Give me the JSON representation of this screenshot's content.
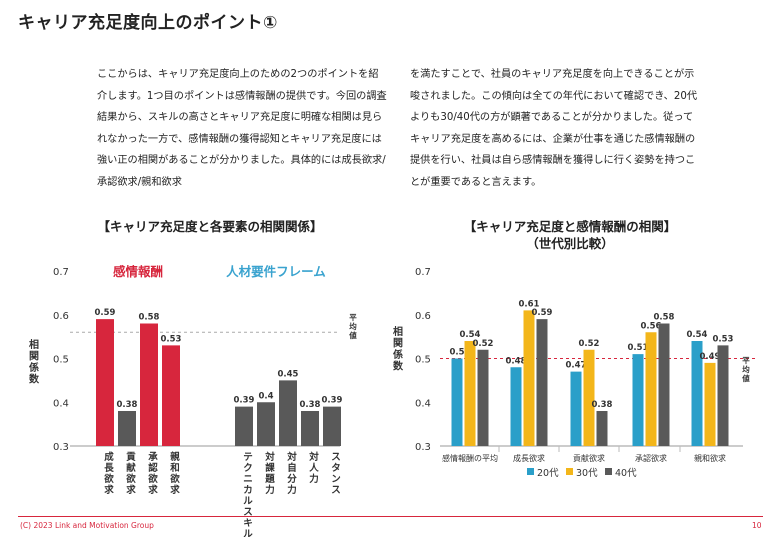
{
  "page": {
    "title": "キャリア充足度向上のポイント①",
    "para_left": "ここからは、キャリア充足度向上のための2つのポイントを紹介します。1つ目のポイントは感情報酬の提供です。今回の調査結果から、スキルの高さとキャリア充足度に明確な相関は見られなかった一方で、感情報酬の獲得認知とキャリア充足度には強い正の相関があることが分かりました。具体的には成長欲求/承認欲求/親和欲求",
    "para_right": "を満たすことで、社員のキャリア充足度を向上できることが示唆されました。この傾向は全ての年代において確認でき、20代よりも30/40代の方が顕著であることが分かりました。従ってキャリア充足度を高めるには、企業が仕事を通じた感情報酬の提供を行い、社員は自ら感情報酬を獲得しに行く姿勢を持つことが重要であると言えます。",
    "copyright": "(C) 2023 Link and Motivation Group",
    "page_number": "10"
  },
  "colors": {
    "red": "#d7263d",
    "gray": "#595959",
    "blue": "#2a9fc9",
    "yellow": "#f3b61a",
    "dark": "#595959",
    "accent": "#3aa3cf"
  },
  "chart_data": [
    {
      "type": "bar",
      "title": "【キャリア充足度と各要素の相関関係】",
      "ylabel": "相関係数",
      "ylim": [
        0.3,
        0.7
      ],
      "yticks": [
        "0.3",
        "0.4",
        "0.5",
        "0.6",
        "0.7"
      ],
      "reference_line": {
        "value": 0.56,
        "label": "平均値"
      },
      "groups": [
        {
          "label": "感情報酬",
          "categories": [
            "成長欲求",
            "貢献欲求",
            "承認欲求",
            "親和欲求"
          ],
          "values": [
            0.59,
            0.38,
            0.58,
            0.53
          ],
          "colors": [
            "red",
            "gray",
            "red",
            "red"
          ]
        },
        {
          "label": "人材要件フレーム",
          "categories": [
            "テクニカルスキル",
            "対課題力",
            "対自分力",
            "対人力",
            "スタンス"
          ],
          "values": [
            0.39,
            0.4,
            0.45,
            0.38,
            0.39
          ],
          "colors": [
            "gray",
            "gray",
            "gray",
            "gray",
            "gray"
          ]
        }
      ]
    },
    {
      "type": "bar",
      "title": "【キャリア充足度と感情報酬の相関】",
      "subtitle": "（世代別比較）",
      "ylabel": "相関係数",
      "ylim": [
        0.3,
        0.7
      ],
      "yticks": [
        "0.3",
        "0.4",
        "0.5",
        "0.6",
        "0.7"
      ],
      "reference_line": {
        "value": 0.5,
        "label": "平均値"
      },
      "categories": [
        "感情報酬の平均",
        "成長欲求",
        "貢献欲求",
        "承認欲求",
        "親和欲求"
      ],
      "series": [
        {
          "name": "20代",
          "color": "blue",
          "values": [
            0.5,
            0.48,
            0.47,
            0.51,
            0.54
          ]
        },
        {
          "name": "30代",
          "color": "yellow",
          "values": [
            0.54,
            0.61,
            0.52,
            0.56,
            0.49
          ]
        },
        {
          "name": "40代",
          "color": "dark",
          "values": [
            0.52,
            0.59,
            0.38,
            0.58,
            0.53
          ]
        }
      ]
    }
  ]
}
